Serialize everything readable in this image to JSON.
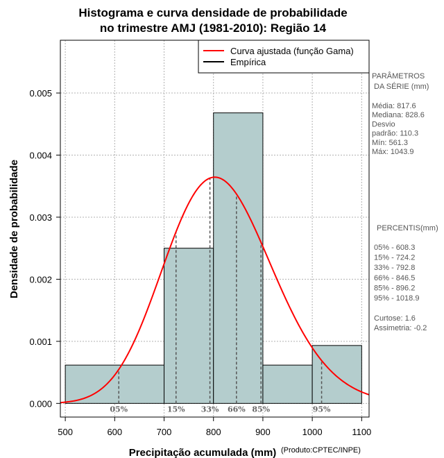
{
  "chart_data": {
    "type": "bar",
    "title_line1": "Histograma e curva densidade de probabilidade",
    "title_line2": "no trimestre AMJ (1981-2010): Região 14",
    "xlabel": "Precipitação acumulada (mm)",
    "ylabel": "Densidade de probabilidade",
    "credit": "(Produto:CPTEC/INPE)",
    "xlim": [
      490,
      1115
    ],
    "ylim": [
      -0.00022,
      0.00585
    ],
    "x_ticks": [
      "500",
      "600",
      "700",
      "800",
      "900",
      "1000",
      "1100"
    ],
    "y_ticks": [
      "0.000",
      "0.001",
      "0.002",
      "0.003",
      "0.004",
      "0.005"
    ],
    "bins": [
      {
        "start": 500,
        "end": 700,
        "density": 0.000617
      },
      {
        "start": 700,
        "end": 800,
        "density": 0.0025
      },
      {
        "start": 800,
        "end": 900,
        "density": 0.00468
      },
      {
        "start": 900,
        "end": 1000,
        "density": 0.000617
      },
      {
        "start": 1000,
        "end": 1100,
        "density": 0.000933
      }
    ],
    "gamma_fit": {
      "mean": 817.6,
      "sd": 110.3
    },
    "legend": {
      "position": "top-right",
      "entries": [
        {
          "label": "Curva ajustada (função Gama)",
          "color": "#ff0000"
        },
        {
          "label": "Empírica",
          "color": "#000000"
        }
      ]
    },
    "percentiles": [
      {
        "label": "05%",
        "value": 608.3
      },
      {
        "label": "15%",
        "value": 724.2
      },
      {
        "label": "33%",
        "value": 792.8
      },
      {
        "label": "66%",
        "value": 846.5
      },
      {
        "label": "85%",
        "value": 896.2
      },
      {
        "label": "95%",
        "value": 1018.9
      }
    ],
    "stats_panel": {
      "title_lines": [
        "PARÂMETROS",
        "DA SÉRIE (mm)"
      ],
      "lines": [
        "Média:  817.6",
        "Mediana:  828.6",
        "Desvio",
        "padrão:  110.3",
        "Mín:  561.3",
        "Máx:  1043.9"
      ]
    },
    "percentis_panel": {
      "title": "PERCENTIS(mm)",
      "lines": [
        "05% -   608.3",
        "15% -   724.2",
        "33% -   792.8",
        "66% -   846.5",
        "85% -   896.2",
        "95% -   1018.9"
      ]
    },
    "shape_panel": {
      "lines": [
        "Curtose:  1.6",
        "Assimetria:  -0.2"
      ]
    }
  },
  "colors": {
    "bar_fill": "#b4cdcd",
    "bar_stroke": "#000000",
    "curve": "#ff0000",
    "grid": "#b0b0b0",
    "percentile_line": "#555555"
  }
}
